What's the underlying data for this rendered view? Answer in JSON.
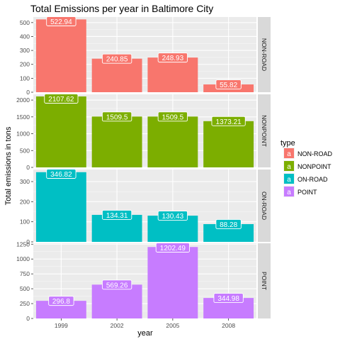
{
  "chart_data": {
    "type": "bar",
    "title": "Total Emissions per year in Baltimore City",
    "xlabel": "year",
    "ylabel": "Total emissions in tons",
    "categories": [
      "1999",
      "2002",
      "2005",
      "2008"
    ],
    "legend": {
      "title": "type",
      "key_glyph": "a",
      "placement": "right"
    },
    "grid": true,
    "facet_direction": "vertical",
    "strip_position": "right",
    "panels": [
      {
        "name": "NON-ROAD",
        "color": "#F8766D",
        "values": [
          522.94,
          240.85,
          248.93,
          55.82
        ],
        "labels": [
          "522.94",
          "240.85",
          "248.93",
          "55.82"
        ],
        "ylim": [
          0,
          540
        ],
        "yticks": [
          0,
          100,
          200,
          300,
          400,
          500
        ]
      },
      {
        "name": "NONPOINT",
        "color": "#7CAE00",
        "values": [
          2107.62,
          1509.5,
          1509.5,
          1373.21
        ],
        "labels": [
          "2107.62",
          "1509.5",
          "1509.5",
          "1373.21"
        ],
        "ylim": [
          0,
          2170
        ],
        "yticks": [
          0,
          500,
          1000,
          1500,
          2000
        ]
      },
      {
        "name": "ON-ROAD",
        "color": "#00BFC4",
        "values": [
          346.82,
          134.31,
          130.43,
          88.28
        ],
        "labels": [
          "346.82",
          "134.31",
          "130.43",
          "88.28"
        ],
        "ylim": [
          0,
          360
        ],
        "yticks": [
          0,
          100,
          200,
          300
        ]
      },
      {
        "name": "POINT",
        "color": "#C77CFF",
        "values": [
          296.8,
          569.26,
          1202.49,
          344.98
        ],
        "labels": [
          "296.8",
          "569.26",
          "1202.49",
          "344.98"
        ],
        "ylim": [
          0,
          1265
        ],
        "yticks": [
          0,
          250,
          500,
          750,
          1000,
          1250
        ]
      }
    ]
  }
}
